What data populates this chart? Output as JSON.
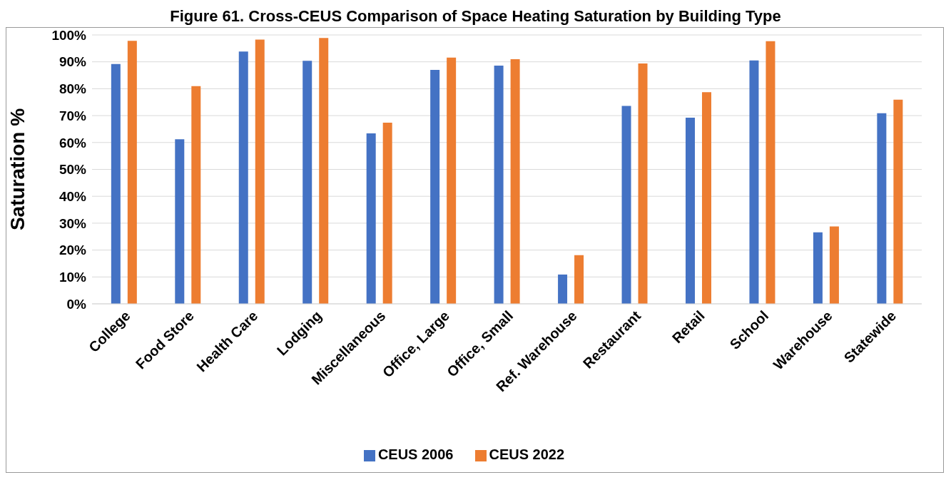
{
  "chart_data": {
    "type": "bar",
    "title": "Figure 61. Cross-CEUS Comparison of Space Heating Saturation by Building Type",
    "ylabel": "Saturation  %",
    "categories": [
      "College",
      "Food Store",
      "Health Care",
      "Lodging",
      "Miscellaneous",
      "Office, Large",
      "Office, Small",
      "Ref. Warehouse",
      "Restaurant",
      "Retail",
      "School",
      "Warehouse",
      "Statewide"
    ],
    "series": [
      {
        "name": "CEUS 2006",
        "color": "#4472c4",
        "values": [
          89.2,
          61.2,
          93.8,
          90.4,
          63.4,
          87,
          88.6,
          10.9,
          73.6,
          69.2,
          90.5,
          26.6,
          70.9
        ]
      },
      {
        "name": "CEUS 2022",
        "color": "#ed7d31",
        "values": [
          97.8,
          81,
          98.3,
          98.9,
          67.4,
          91.6,
          91,
          18.1,
          89.4,
          78.7,
          97.7,
          28.8,
          75.9
        ]
      }
    ],
    "ylim": [
      0,
      100
    ],
    "yticks": [
      {
        "value": 0,
        "label": "0%"
      },
      {
        "value": 10,
        "label": "10%"
      },
      {
        "value": 20,
        "label": "20%"
      },
      {
        "value": 30,
        "label": "30%"
      },
      {
        "value": 40,
        "label": "40%"
      },
      {
        "value": 50,
        "label": "50%"
      },
      {
        "value": 60,
        "label": "60%"
      },
      {
        "value": 70,
        "label": "70%"
      },
      {
        "value": 80,
        "label": "80%"
      },
      {
        "value": 90,
        "label": "90%"
      },
      {
        "value": 100,
        "label": "100%"
      }
    ],
    "grid": "y",
    "legend": "bottom"
  }
}
